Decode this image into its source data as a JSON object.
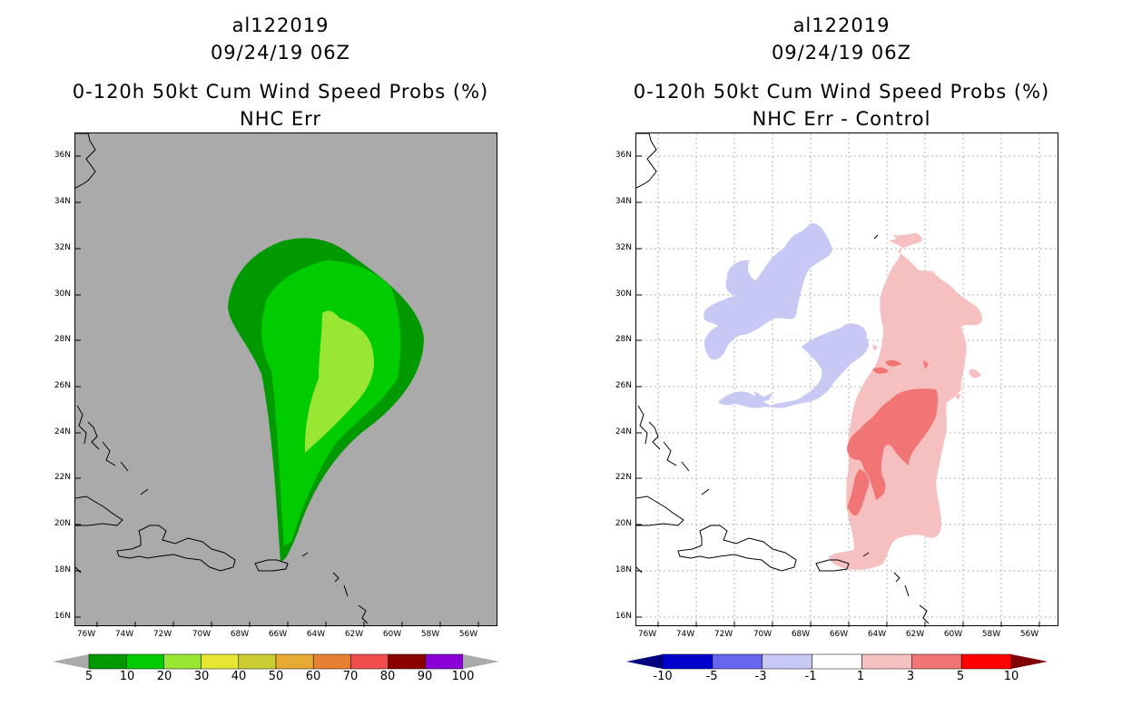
{
  "left_panel": {
    "storm_id": "al122019",
    "datetime": "09/24/19 06Z",
    "product": "0-120h 50kt Cum Wind Speed Probs (%)",
    "subtitle": "NHC Err",
    "colorbar": {
      "labels": [
        "5",
        "10",
        "20",
        "30",
        "40",
        "50",
        "60",
        "70",
        "80",
        "90",
        "100"
      ],
      "colors": [
        "#009900",
        "#00cc00",
        "#99e633",
        "#e6e633",
        "#cccc33",
        "#e6aa33",
        "#e68033",
        "#f24d4d",
        "#8c0000",
        "#8a00d6"
      ],
      "end_color": "#aaaaaa"
    }
  },
  "right_panel": {
    "storm_id": "al122019",
    "datetime": "09/24/19 06Z",
    "product": "0-120h 50kt Cum Wind Speed Probs (%)",
    "subtitle": "NHC Err - Control",
    "colorbar": {
      "labels": [
        "-10",
        "-5",
        "-3",
        "-1",
        "1",
        "3",
        "5",
        "10"
      ],
      "colors": [
        "#0000cc",
        "#6666ee",
        "#c8c8f5",
        "#ffffff",
        "#f7c0c0",
        "#f27575",
        "#ff0000"
      ],
      "end_low": "#000080",
      "end_high": "#800000"
    }
  },
  "axes": {
    "lat_labels": [
      "36N",
      "34N",
      "32N",
      "30N",
      "28N",
      "26N",
      "24N",
      "22N",
      "20N",
      "18N",
      "16N"
    ],
    "lon_labels": [
      "76W",
      "74W",
      "72W",
      "70W",
      "68W",
      "66W",
      "64W",
      "62W",
      "60W",
      "58W",
      "56W"
    ],
    "lat_range": [
      15.6,
      37.0
    ],
    "lon_range": [
      -76.7,
      -55.0
    ]
  }
}
